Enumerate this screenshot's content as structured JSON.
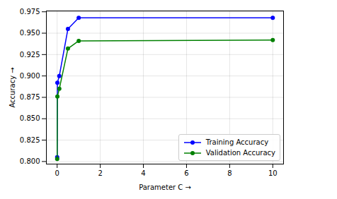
{
  "chart_data": {
    "type": "line",
    "x_label": "Parameter C",
    "y_label": "Accuracy",
    "x": [
      0.001,
      0.01,
      0.1,
      0.5,
      1,
      10
    ],
    "series": [
      {
        "name": "Training Accuracy",
        "color": "#0000ff",
        "marker": "o",
        "line_style": "solid",
        "values": [
          0.805,
          0.892,
          0.9,
          0.955,
          0.968,
          0.968
        ]
      },
      {
        "name": "Validation Accuracy",
        "color": "#008000",
        "marker": "o",
        "line_style": "solid",
        "values": [
          0.803,
          0.876,
          0.885,
          0.932,
          0.941,
          0.942
        ]
      }
    ],
    "xlim": [
      -0.5,
      10.5
    ],
    "xticks": [
      0,
      2,
      4,
      6,
      8,
      10
    ],
    "ylim": [
      0.797,
      0.976
    ],
    "yticks": [
      {
        "value": 0.8,
        "label": "0.800"
      },
      {
        "value": 0.825,
        "label": "0.825"
      },
      {
        "value": 0.85,
        "label": "0.850"
      },
      {
        "value": 0.875,
        "label": "0.875"
      },
      {
        "value": 0.9,
        "label": "0.900"
      },
      {
        "value": 0.925,
        "label": "0.925"
      },
      {
        "value": 0.95,
        "label": "0.950"
      },
      {
        "value": 0.975,
        "label": "0.975"
      }
    ],
    "grid": true,
    "legend": "lower right"
  }
}
